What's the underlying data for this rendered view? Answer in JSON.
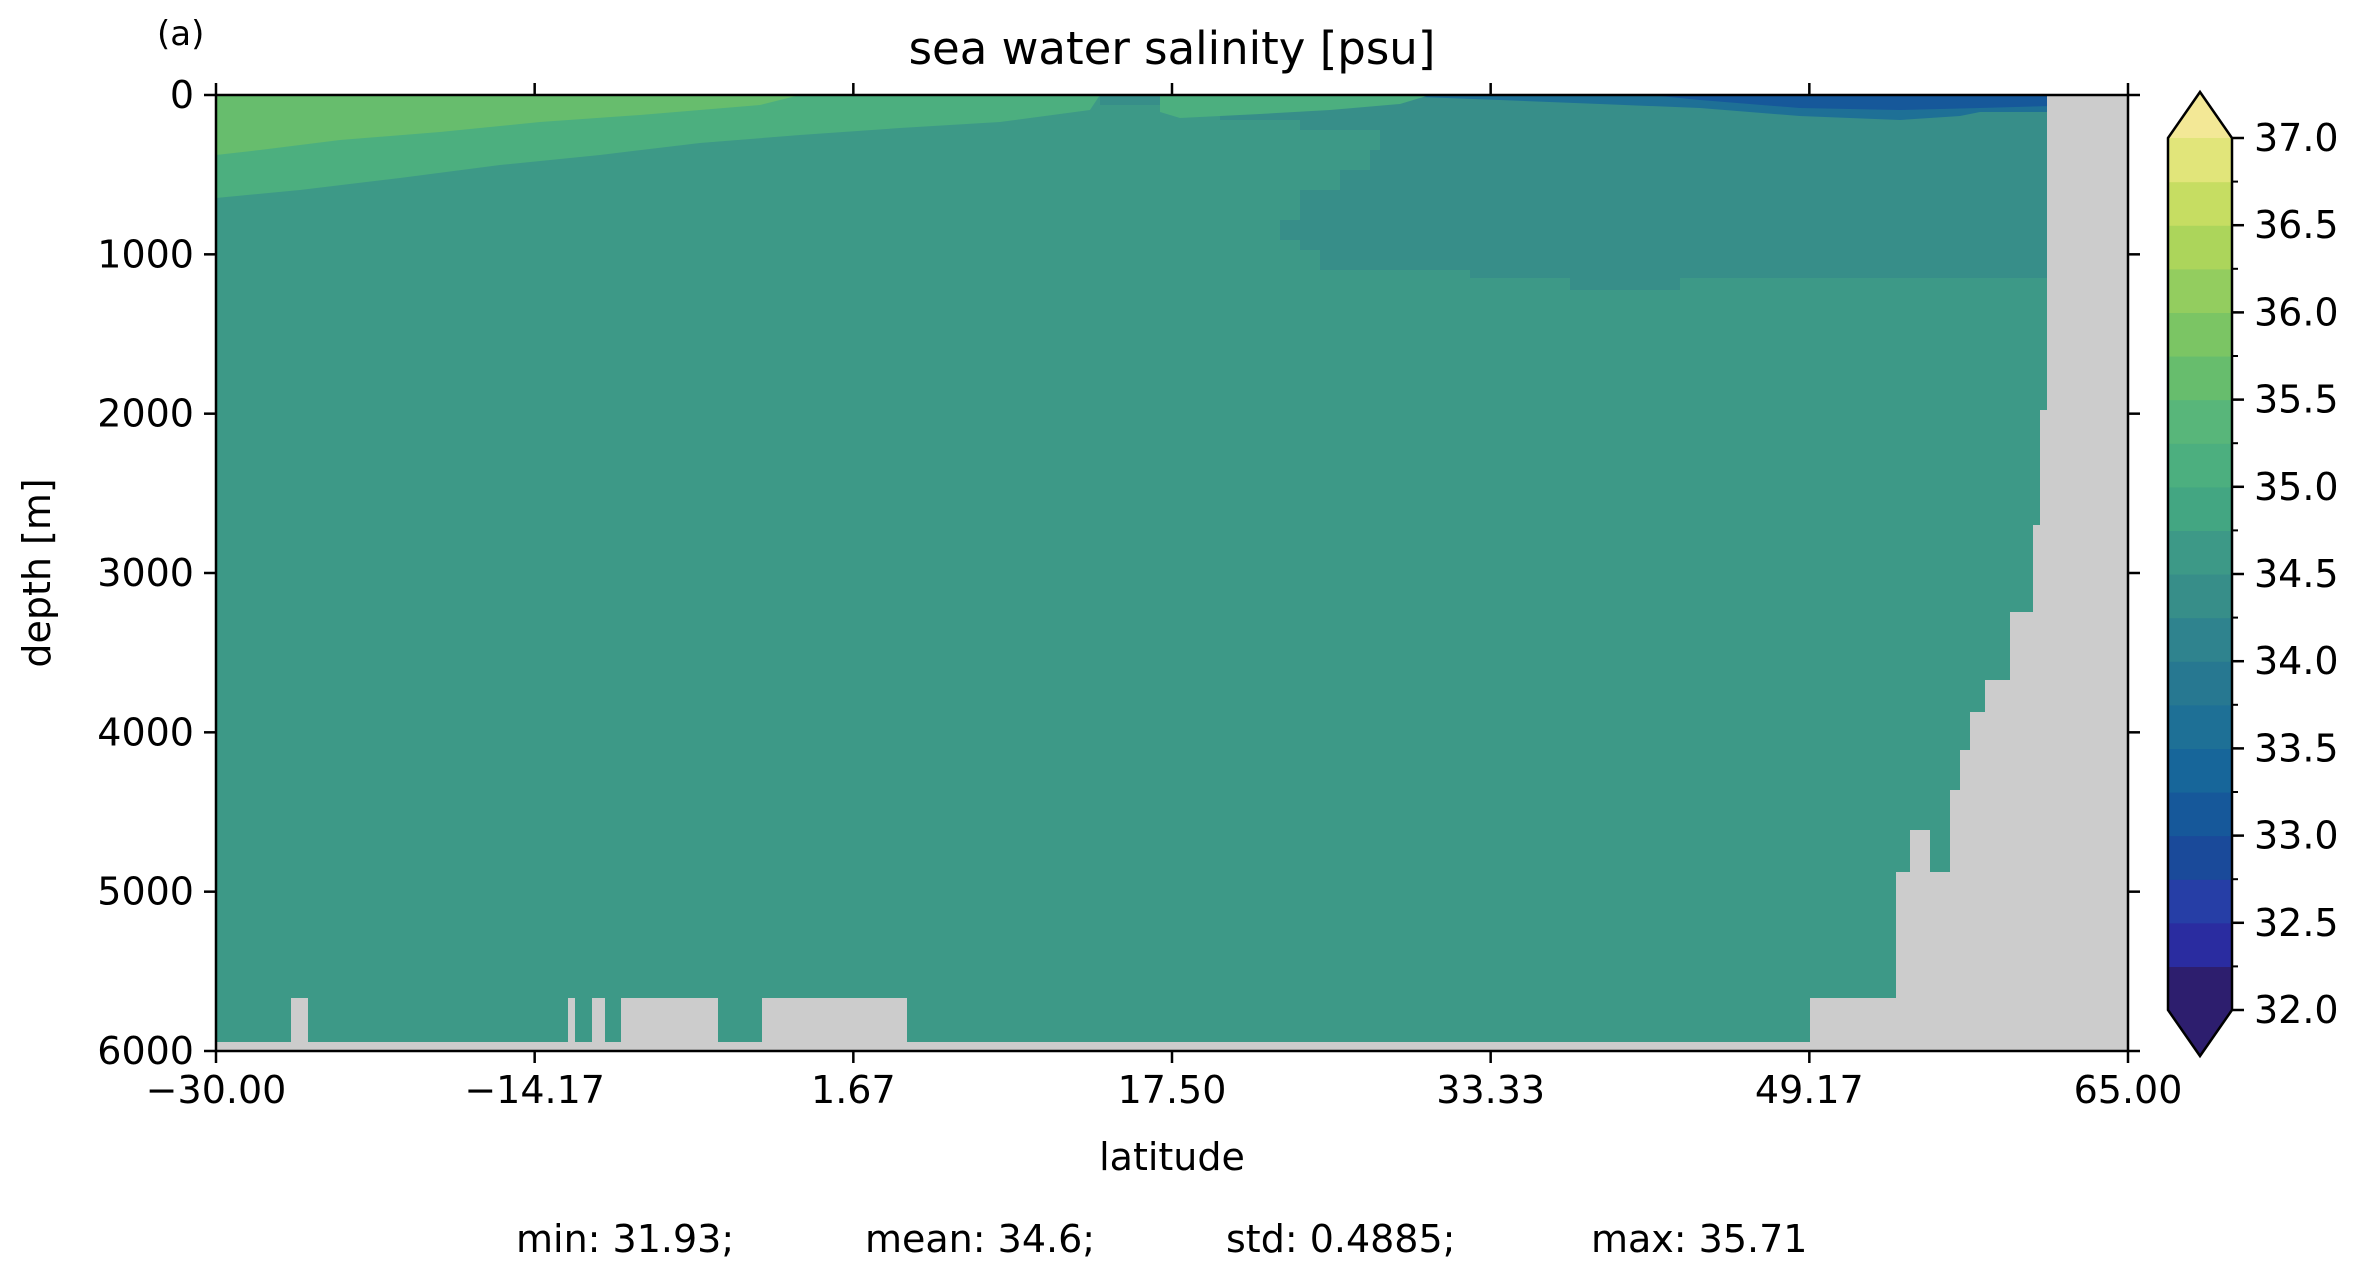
{
  "panel_label": "(a)",
  "title": "sea water salinity [psu]",
  "stats": {
    "min": "min: 31.93;",
    "mean": "mean: 34.6;",
    "std": "std: 0.4885;",
    "max": "max: 35.71"
  },
  "chart_data": {
    "type": "heatmap",
    "title": "sea water salinity [psu]",
    "xlabel": "latitude",
    "ylabel": "depth [m]",
    "xlim": [
      -30.0,
      65.0
    ],
    "ylim": [
      6000,
      0
    ],
    "x_ticks": [
      "−30.00",
      "−14.17",
      "1.67",
      "17.50",
      "33.33",
      "49.17",
      "65.00"
    ],
    "y_ticks": [
      "0",
      "1000",
      "2000",
      "3000",
      "4000",
      "5000",
      "6000"
    ],
    "colorbar": {
      "label_ticks": [
        "32.0",
        "32.5",
        "33.0",
        "33.5",
        "34.0",
        "34.5",
        "35.0",
        "35.5",
        "36.0",
        "36.5",
        "37.0"
      ],
      "levels": [
        32.0,
        32.25,
        32.5,
        32.75,
        33.0,
        33.25,
        33.5,
        33.75,
        34.0,
        34.25,
        34.5,
        34.75,
        35.0,
        35.25,
        35.5,
        35.75,
        36.0,
        36.25,
        36.5,
        36.75,
        37.0
      ],
      "colors": [
        "#2d1e6e",
        "#2a2ca0",
        "#263ea6",
        "#1a4a9a",
        "#16589a",
        "#17669a",
        "#1e7096",
        "#277891",
        "#2f838e",
        "#378e89",
        "#3d9987",
        "#43a682",
        "#4caf7f",
        "#58b67a",
        "#67bd6d",
        "#7bc564",
        "#93cd5f",
        "#acd55b",
        "#c6dd62",
        "#e1e57a"
      ],
      "extend_low_color": "#2d1e6e",
      "extend_high_color": "#f3e896",
      "range": [
        32.0,
        37.0
      ]
    },
    "fields": {
      "main_value": 34.6,
      "mid_depth_band_value": 34.4,
      "surface_north_value": 33.0,
      "surface_south_value": 35.6
    },
    "land_color": "#cccccc"
  }
}
